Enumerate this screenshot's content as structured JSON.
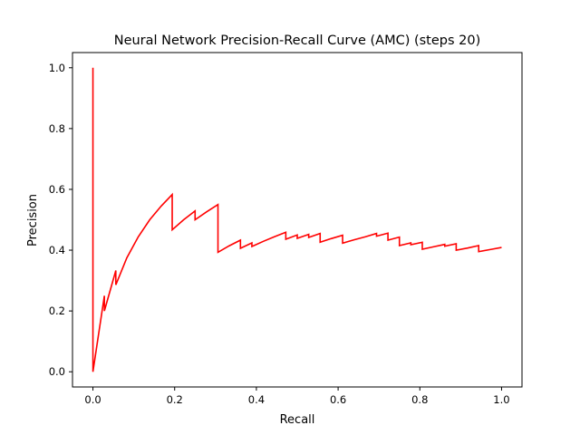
{
  "chart_data": {
    "type": "line",
    "title": "Neural Network Precision-Recall Curve (AMC) (steps 20)",
    "xlabel": "Recall",
    "ylabel": "Precision",
    "xlim": [
      -0.05,
      1.05
    ],
    "ylim": [
      -0.05,
      1.05
    ],
    "xticks": [
      0.0,
      0.2,
      0.4,
      0.6,
      0.8,
      1.0
    ],
    "xtick_labels": [
      "0.0",
      "0.2",
      "0.4",
      "0.6",
      "0.8",
      "1.0"
    ],
    "yticks": [
      0.0,
      0.2,
      0.4,
      0.6,
      0.8,
      1.0
    ],
    "ytick_labels": [
      "0.0",
      "0.2",
      "0.4",
      "0.6",
      "0.8",
      "1.0"
    ],
    "grid": false,
    "series": [
      {
        "color": "#ff0000",
        "x": [
          0.0,
          0.0,
          0.0,
          0.028,
          0.028,
          0.056,
          0.056,
          0.083,
          0.111,
          0.139,
          0.167,
          0.194,
          0.194,
          0.222,
          0.25,
          0.25,
          0.278,
          0.306,
          0.306,
          0.333,
          0.361,
          0.361,
          0.389,
          0.389,
          0.417,
          0.444,
          0.472,
          0.472,
          0.5,
          0.5,
          0.528,
          0.528,
          0.556,
          0.556,
          0.583,
          0.611,
          0.611,
          0.639,
          0.667,
          0.694,
          0.694,
          0.722,
          0.722,
          0.75,
          0.75,
          0.778,
          0.778,
          0.806,
          0.806,
          0.833,
          0.861,
          0.861,
          0.889,
          0.889,
          0.917,
          0.944,
          0.944,
          0.972,
          1.0
        ],
        "y": [
          1.0,
          0.0,
          0.0,
          0.25,
          0.2,
          0.333,
          0.286,
          0.375,
          0.444,
          0.5,
          0.545,
          0.583,
          0.467,
          0.5,
          0.529,
          0.5,
          0.526,
          0.55,
          0.393,
          0.414,
          0.433,
          0.406,
          0.424,
          0.412,
          0.429,
          0.444,
          0.459,
          0.436,
          0.45,
          0.439,
          0.452,
          0.442,
          0.455,
          0.426,
          0.438,
          0.449,
          0.423,
          0.434,
          0.444,
          0.455,
          0.446,
          0.456,
          0.433,
          0.443,
          0.415,
          0.424,
          0.418,
          0.426,
          0.403,
          0.411,
          0.419,
          0.413,
          0.421,
          0.4,
          0.407,
          0.415,
          0.395,
          0.402,
          0.409
        ]
      }
    ]
  }
}
